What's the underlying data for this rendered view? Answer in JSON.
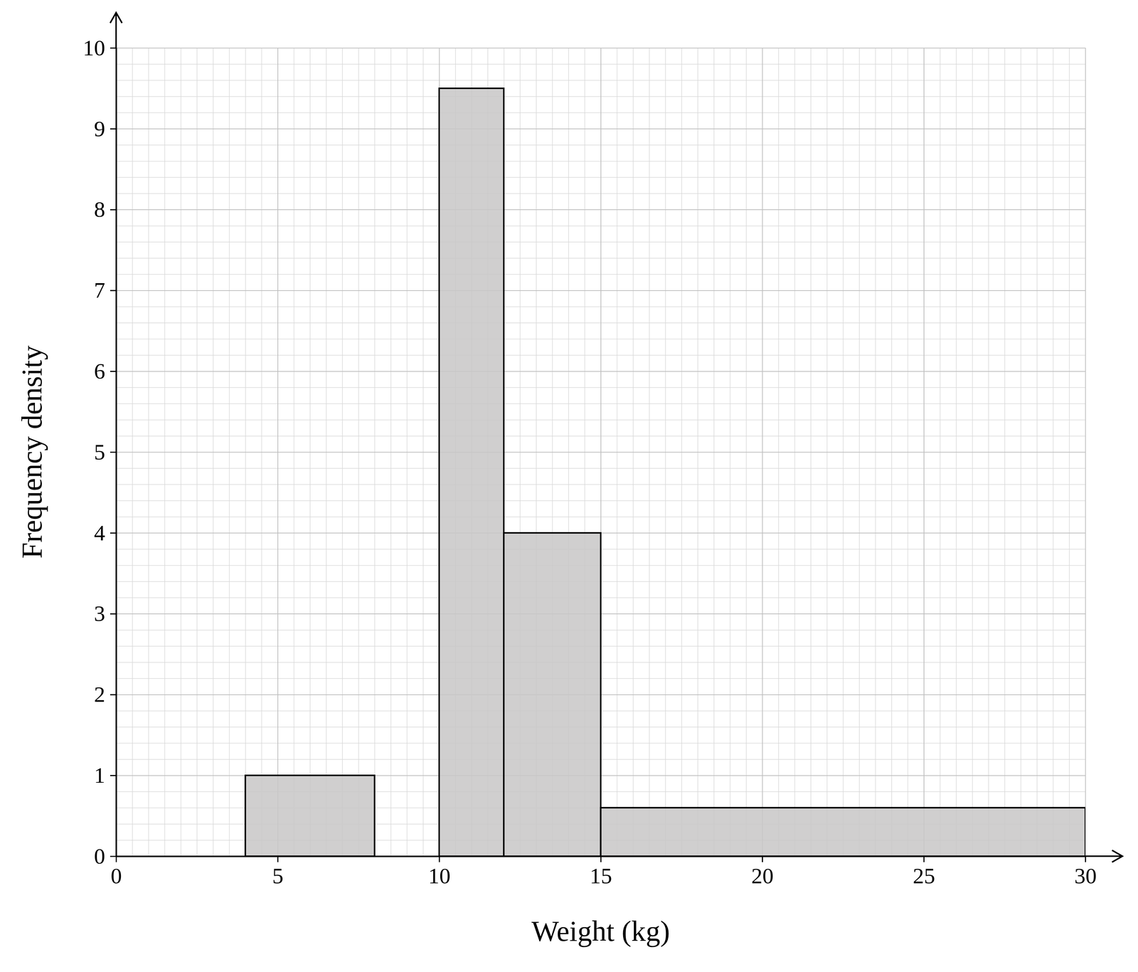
{
  "chart_data": {
    "type": "histogram",
    "xlabel": "Weight (kg)",
    "ylabel": "Frequency density",
    "bins": [
      4,
      8,
      10,
      12,
      15,
      30
    ],
    "values": [
      1,
      0,
      9.5,
      4,
      0.6
    ],
    "color": "#c8c7c7",
    "xlim": [
      0,
      30
    ],
    "xticks": [
      0,
      5,
      10,
      15,
      20,
      25,
      30
    ],
    "ylim": [
      0,
      10
    ],
    "yticks": [
      0,
      1,
      2,
      3,
      4,
      5,
      6,
      7,
      8,
      9,
      10
    ],
    "grid": true
  }
}
